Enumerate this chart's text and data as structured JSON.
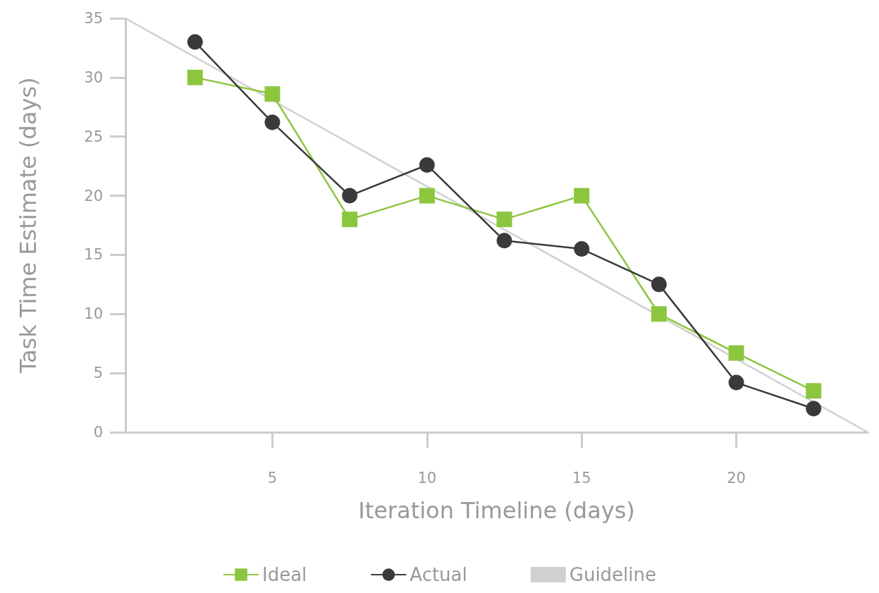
{
  "chart_data": {
    "type": "line",
    "xlabel": "Iteration Timeline (days)",
    "ylabel": "Task Time Estimate (days)",
    "xlim": [
      0.25,
      24.25
    ],
    "xticks": [
      5,
      10,
      15,
      20
    ],
    "ylim": [
      0,
      35
    ],
    "yticks": [
      0,
      5,
      10,
      15,
      20,
      25,
      30,
      35
    ],
    "grid": false,
    "legend": "bottom",
    "line_style": "solid",
    "x": [
      2.5,
      5,
      7.5,
      10,
      12.5,
      15,
      17.5,
      20,
      22.5
    ],
    "series": [
      {
        "name": "Ideal",
        "color": "#8cc63f",
        "marker": "square",
        "values": [
          30,
          28.6,
          18,
          20,
          18,
          20,
          10,
          6.7,
          3.5
        ]
      },
      {
        "name": "Actual",
        "color": "#3a3a3c",
        "marker": "circle",
        "values": [
          33,
          26.2,
          20,
          22.6,
          16.2,
          15.5,
          12.5,
          4.2,
          2
        ]
      },
      {
        "name": "Guideline",
        "color": "#d0d0d0",
        "marker": "none",
        "x": [
          0.25,
          24.25
        ],
        "values": [
          35,
          0
        ]
      }
    ]
  }
}
